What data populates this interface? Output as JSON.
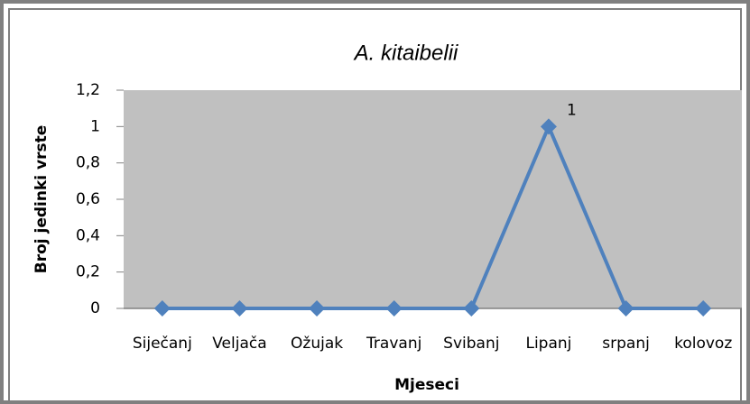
{
  "chart_data": {
    "type": "line",
    "title": "A. kitaibelii",
    "x_label": "Mjeseci",
    "y_label": "Broj jedinki vrste",
    "categories": [
      "Siječanj",
      "Veljača",
      "Ožujak",
      "Travanj",
      "Svibanj",
      "Lipanj",
      "srpanj",
      "kolovoz"
    ],
    "values": [
      0,
      0,
      0,
      0,
      0,
      1,
      0,
      0
    ],
    "value_labels": [
      null,
      null,
      null,
      null,
      null,
      "1",
      null,
      null
    ],
    "color": "#4f81bd",
    "ylim": [
      0,
      1.2
    ],
    "yticks": [
      0,
      {
        "value": 0.2,
        "label": "0,2"
      },
      {
        "value": 0.4,
        "label": "0,4"
      },
      {
        "value": 0.6,
        "label": "0,6"
      },
      {
        "value": 0.8,
        "label": "0,8"
      },
      1,
      {
        "value": 1.2,
        "label": "1,2"
      }
    ],
    "grid": false
  }
}
